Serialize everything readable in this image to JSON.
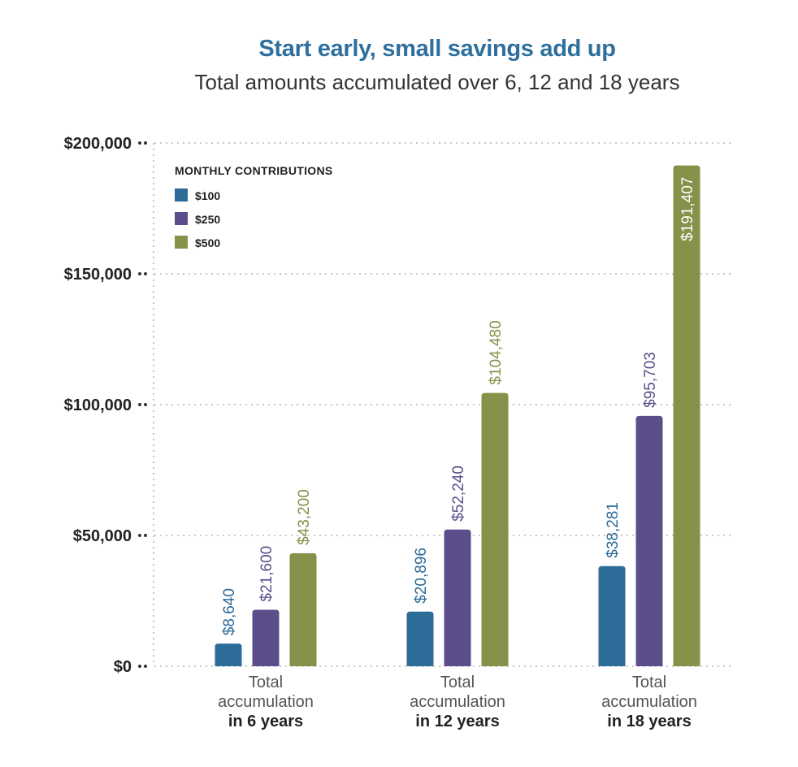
{
  "chart_data": {
    "type": "bar",
    "title": "Start early, small savings add up",
    "subtitle": "Total amounts accumulated over 6, 12 and 18 years",
    "categories": [
      {
        "line1": "Total",
        "line2": "accumulation",
        "line3": "in 6 years"
      },
      {
        "line1": "Total",
        "line2": "accumulation",
        "line3": "in 12 years"
      },
      {
        "line1": "Total",
        "line2": "accumulation",
        "line3": "in 18 years"
      }
    ],
    "legend_title": "MONTHLY CONTRIBUTIONS",
    "legend_position": "top-left",
    "series": [
      {
        "name": "$100",
        "color": "#2d6b98",
        "values": [
          8640,
          20896,
          38281
        ],
        "labels": [
          "$8,640",
          "$20,896",
          "$38,281"
        ]
      },
      {
        "name": "$250",
        "color": "#5b4e8b",
        "values": [
          21600,
          52240,
          95703
        ],
        "labels": [
          "$21,600",
          "$52,240",
          "$95,703"
        ]
      },
      {
        "name": "$500",
        "color": "#84924a",
        "values": [
          43200,
          104480,
          191407
        ],
        "labels": [
          "$43,200",
          "$104,480",
          "$191,407"
        ]
      }
    ],
    "yticks": [
      {
        "value": 0,
        "label": "$0"
      },
      {
        "value": 50000,
        "label": "$50,000"
      },
      {
        "value": 100000,
        "label": "$100,000"
      },
      {
        "value": 150000,
        "label": "$150,000"
      },
      {
        "value": 200000,
        "label": "$200,000"
      }
    ],
    "ylim": [
      0,
      200000
    ],
    "grid": true
  }
}
